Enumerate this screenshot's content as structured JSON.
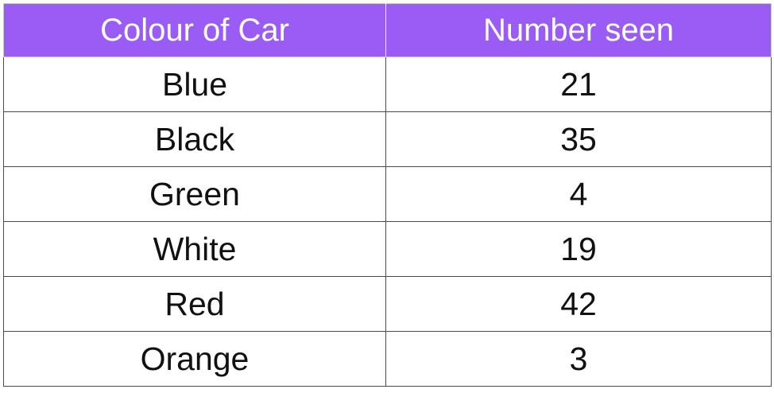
{
  "chart_data": {
    "type": "table",
    "columns": [
      "Colour of Car",
      "Number seen"
    ],
    "rows": [
      {
        "colour": "Blue",
        "count": "21"
      },
      {
        "colour": "Black",
        "count": "35"
      },
      {
        "colour": "Green",
        "count": "4"
      },
      {
        "colour": "White",
        "count": "19"
      },
      {
        "colour": "Red",
        "count": "42"
      },
      {
        "colour": "Orange",
        "count": "3"
      }
    ],
    "header_color": "#9b5cf6"
  }
}
